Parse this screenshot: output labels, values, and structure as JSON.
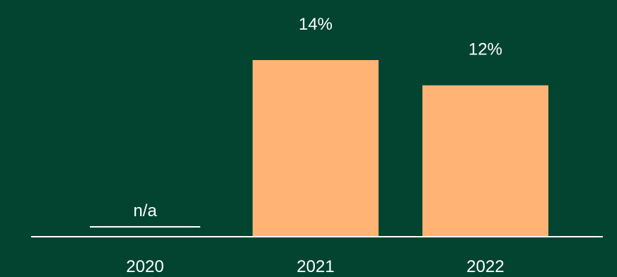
{
  "colors": {
    "background": "#024430",
    "bar": "#FFB374",
    "axis": "#FFFFFF",
    "text": "#FFFFFF"
  },
  "chart_data": {
    "type": "bar",
    "categories": [
      "2020",
      "2021",
      "2022"
    ],
    "values": [
      null,
      14,
      12
    ],
    "data_labels": [
      "n/a",
      "14%",
      "12%"
    ],
    "unit": "%",
    "ylim": [
      0,
      16
    ],
    "grid": false,
    "legend": "none"
  }
}
